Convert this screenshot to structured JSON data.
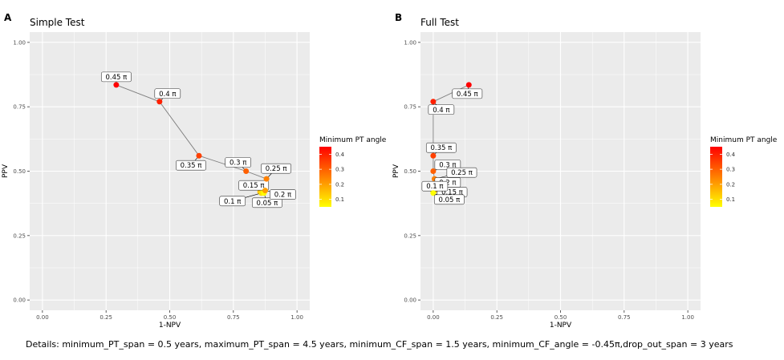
{
  "details_text": "Details: minimum_PT_span = 0.5 years, maximum_PT_span = 4.5 years, minimum_CF_span = 1.5 years, minimum_CF_angle = -0.45π,drop_out_span = 3 years",
  "colors": {
    "panel_bg": "#ebebeb",
    "grid": "#ffffff",
    "path_line": "#7f7f7f",
    "gradient_low": "#ffff00",
    "gradient_high": "#ff0000"
  },
  "chart_data": [
    {
      "type": "scatter",
      "panel_tag": "A",
      "title": "Simple Test",
      "xlabel": "1-NPV",
      "ylabel": "PPV",
      "xlim": [
        -0.05,
        1.05
      ],
      "ylim": [
        -0.04,
        1.04
      ],
      "x_ticks": [
        "0.00",
        "0.25",
        "0.50",
        "0.75",
        "1.00"
      ],
      "y_ticks": [
        "0.00",
        "0.25",
        "0.50",
        "0.75",
        "1.00"
      ],
      "grid": true,
      "connected_path": true,
      "legend": {
        "title": "Minimum PT angle",
        "position": "right",
        "ticks": [
          "0.1",
          "0.2",
          "0.3",
          "0.4"
        ],
        "range": [
          0.05,
          0.45
        ]
      },
      "points": [
        {
          "label": "0.45 π",
          "angle": 0.45,
          "x": 0.29,
          "y": 0.835
        },
        {
          "label": "0.4 π",
          "angle": 0.4,
          "x": 0.46,
          "y": 0.77
        },
        {
          "label": "0.35 π",
          "angle": 0.35,
          "x": 0.615,
          "y": 0.56
        },
        {
          "label": "0.3 π",
          "angle": 0.3,
          "x": 0.8,
          "y": 0.5
        },
        {
          "label": "0.15 π",
          "angle": 0.15,
          "x": 0.855,
          "y": 0.42
        },
        {
          "label": "0.1 π",
          "angle": 0.1,
          "x": 0.86,
          "y": 0.415
        },
        {
          "label": "0.05 π",
          "angle": 0.05,
          "x": 0.87,
          "y": 0.415
        },
        {
          "label": "0.2 π",
          "angle": 0.2,
          "x": 0.875,
          "y": 0.425
        },
        {
          "label": "0.25 π",
          "angle": 0.25,
          "x": 0.88,
          "y": 0.47
        }
      ]
    },
    {
      "type": "scatter",
      "panel_tag": "B",
      "title": "Full Test",
      "xlabel": "1-NPV",
      "ylabel": "PPV",
      "xlim": [
        -0.05,
        1.05
      ],
      "ylim": [
        -0.04,
        1.04
      ],
      "x_ticks": [
        "0.00",
        "0.25",
        "0.50",
        "0.75",
        "1.00"
      ],
      "y_ticks": [
        "0.00",
        "0.25",
        "0.50",
        "0.75",
        "1.00"
      ],
      "grid": true,
      "connected_path": true,
      "legend": {
        "title": "Minimum PT angle",
        "position": "right",
        "ticks": [
          "0.1",
          "0.2",
          "0.3",
          "0.4"
        ],
        "range": [
          0.05,
          0.45
        ]
      },
      "points": [
        {
          "label": "0.45 π",
          "angle": 0.45,
          "x": 0.14,
          "y": 0.835
        },
        {
          "label": "0.4 π",
          "angle": 0.4,
          "x": 0.0,
          "y": 0.77
        },
        {
          "label": "0.35 π",
          "angle": 0.35,
          "x": 0.0,
          "y": 0.56
        },
        {
          "label": "0.3 π",
          "angle": 0.3,
          "x": 0.0,
          "y": 0.5
        },
        {
          "label": "0.25 π",
          "angle": 0.25,
          "x": 0.005,
          "y": 0.47
        },
        {
          "label": "0.2 π",
          "angle": 0.2,
          "x": 0.0,
          "y": 0.45
        },
        {
          "label": "0.15 π",
          "angle": 0.15,
          "x": 0.005,
          "y": 0.425
        },
        {
          "label": "0.1 π",
          "angle": 0.1,
          "x": 0.0,
          "y": 0.42
        },
        {
          "label": "0.05 π",
          "angle": 0.05,
          "x": 0.0,
          "y": 0.415
        }
      ]
    }
  ]
}
